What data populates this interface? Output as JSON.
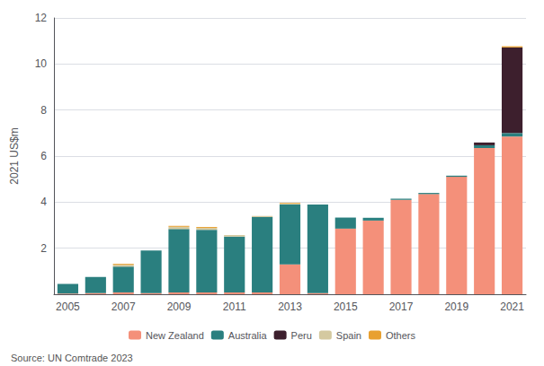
{
  "chart_data": {
    "type": "bar",
    "stacked": true,
    "ylabel": "2021 US$m",
    "annotations": [
      "Source: UN Comtrade 2023"
    ],
    "categories": [
      "2005",
      null,
      "2007",
      null,
      "2009",
      null,
      "2011",
      null,
      "2013",
      null,
      "2015",
      null,
      "2017",
      null,
      "2019",
      null,
      "2021"
    ],
    "series": [
      {
        "name": "New Zealand",
        "color": "#F4907A",
        "values": [
          0.03,
          0.05,
          0.08,
          0.05,
          0.08,
          0.08,
          0.08,
          0.08,
          1.3,
          0.05,
          2.85,
          3.2,
          4.1,
          4.35,
          5.1,
          6.35,
          6.85
        ]
      },
      {
        "name": "Australia",
        "color": "#2A7F7F",
        "values": [
          0.42,
          0.7,
          1.12,
          1.85,
          2.75,
          2.72,
          2.42,
          3.27,
          2.6,
          3.85,
          0.48,
          0.12,
          0.05,
          0.05,
          0.05,
          0.12,
          0.15
        ]
      },
      {
        "name": "Peru",
        "color": "#3D1F2D",
        "values": [
          0.0,
          0.0,
          0.0,
          0.0,
          0.0,
          0.0,
          0.0,
          0.0,
          0.0,
          0.0,
          0.0,
          0.0,
          0.0,
          0.0,
          0.0,
          0.12,
          3.72
        ]
      },
      {
        "name": "Spain",
        "color": "#D4C9A0",
        "values": [
          0.0,
          0.0,
          0.08,
          0.0,
          0.1,
          0.08,
          0.07,
          0.05,
          0.04,
          0.0,
          0.0,
          0.0,
          0.0,
          0.0,
          0.0,
          0.0,
          0.0
        ]
      },
      {
        "name": "Others",
        "color": "#E8A030",
        "values": [
          0.0,
          0.0,
          0.04,
          0.0,
          0.04,
          0.04,
          0.0,
          0.0,
          0.03,
          0.0,
          0.0,
          0.0,
          0.0,
          0.0,
          0.0,
          0.0,
          0.05
        ]
      }
    ],
    "ylim": [
      0,
      12
    ],
    "yticks": [
      2,
      4,
      6,
      8,
      10,
      12
    ],
    "grid": true,
    "legend": "bottom"
  }
}
